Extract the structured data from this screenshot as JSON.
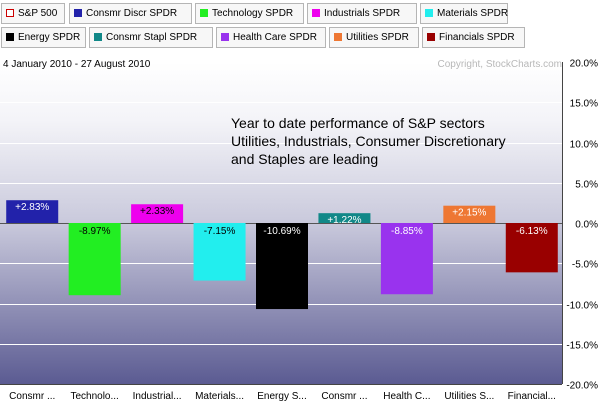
{
  "legend": [
    {
      "label": "S&P 500",
      "color": "#ffffff",
      "border": "#cc0000"
    },
    {
      "label": "Consmr Discr SPDR",
      "color": "#2222aa"
    },
    {
      "label": "Technology SPDR",
      "color": "#22ee22"
    },
    {
      "label": "Industrials SPDR",
      "color": "#ee00ee"
    },
    {
      "label": "Materials SPDR",
      "color": "#22eeee"
    },
    {
      "label": "Energy SPDR",
      "color": "#000000"
    },
    {
      "label": "Consmr Stapl SPDR",
      "color": "#118888"
    },
    {
      "label": "Health Care SPDR",
      "color": "#9933ee"
    },
    {
      "label": "Utilities SPDR",
      "color": "#ee7733"
    },
    {
      "label": "Financials SPDR",
      "color": "#990000"
    }
  ],
  "header": {
    "date_range": "4 January 2010 - 27 August 2010",
    "copyright": "Copyright, StockCharts.com"
  },
  "annotation": {
    "lines": [
      "Year to date performance of S&P sectors",
      "Utilities, Industrials, Consumer Discretionary",
      "and Staples are leading"
    ]
  },
  "chart_data": {
    "type": "bar",
    "categories": [
      "Consmr ...",
      "Technolo...",
      "Industrial...",
      "Materials...",
      "Energy S...",
      "Consmr ...",
      "Health C...",
      "Utilities S...",
      "Financial..."
    ],
    "values": [
      2.83,
      -8.97,
      2.33,
      -7.15,
      -10.69,
      1.22,
      -8.85,
      2.15,
      -6.13
    ],
    "value_labels": [
      "+2.83%",
      "-8.97%",
      "+2.33%",
      "-7.15%",
      "-10.69%",
      "+1.22%",
      "-8.85%",
      "+2.15%",
      "-6.13%"
    ],
    "colors": [
      "#2222aa",
      "#22ee22",
      "#ee00ee",
      "#22eeee",
      "#000000",
      "#118888",
      "#9933ee",
      "#ee7733",
      "#990000"
    ],
    "label_colors": [
      "#ffffff",
      "#000000",
      "#000000",
      "#000000",
      "#ffffff",
      "#ffffff",
      "#ffffff",
      "#ffffff",
      "#ffffff"
    ],
    "ylim": [
      -20,
      20
    ],
    "yticks": [
      20,
      15,
      10,
      5,
      0,
      -5,
      -10,
      -15,
      -20
    ],
    "ytick_labels": [
      "20.0%",
      "15.0%",
      "10.0%",
      "5.0%",
      "0.0%",
      "-5.0%",
      "-10.0%",
      "-15.0%",
      "-20.0%"
    ],
    "grid": true,
    "title": "",
    "xlabel": "",
    "ylabel": ""
  }
}
